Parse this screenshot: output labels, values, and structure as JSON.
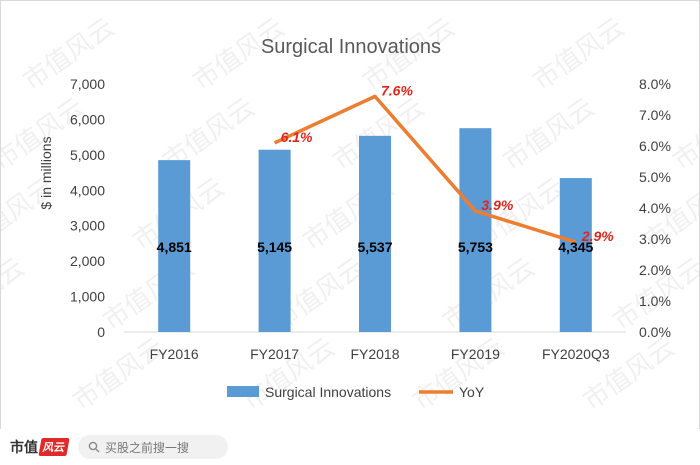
{
  "footer": {
    "brand": "市值",
    "brand_badge": "风云",
    "search_placeholder": "买股之前搜一搜"
  },
  "chart_data": {
    "type": "bar",
    "title": "Surgical Innovations",
    "categories": [
      "FY2016",
      "FY2017",
      "FY2018",
      "FY2019",
      "FY2020Q3"
    ],
    "ylabel": "$ in millions",
    "ylim": [
      0,
      7000
    ],
    "yticks": [
      "0",
      "1,000",
      "2,000",
      "3,000",
      "4,000",
      "5,000",
      "6,000",
      "7,000"
    ],
    "y2lim": [
      0,
      8
    ],
    "y2ticks": [
      "0.0%",
      "1.0%",
      "2.0%",
      "3.0%",
      "4.0%",
      "5.0%",
      "6.0%",
      "7.0%",
      "8.0%"
    ],
    "grid": false,
    "legend_position": "bottom",
    "series": [
      {
        "name": "Surgical Innovations",
        "kind": "bar",
        "axis": "left",
        "color": "#5b9bd5",
        "values": [
          4851,
          5145,
          5537,
          5753,
          4345
        ],
        "labels": [
          "4,851",
          "5,145",
          "5,537",
          "5,753",
          "4,345"
        ]
      },
      {
        "name": "YoY",
        "kind": "line",
        "axis": "right",
        "color": "#ed7d31",
        "values": [
          null,
          6.1,
          7.6,
          3.9,
          2.9
        ],
        "labels": [
          "",
          "6.1%",
          "7.6%",
          "3.9%",
          "2.9%"
        ],
        "label_color": "#e0261a"
      }
    ]
  }
}
